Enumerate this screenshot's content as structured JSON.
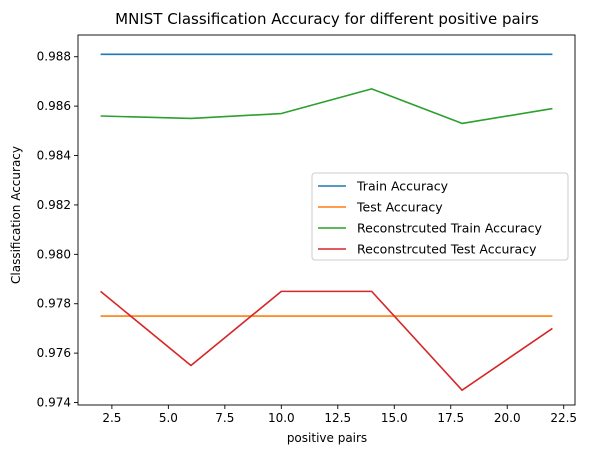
{
  "chart_data": {
    "type": "line",
    "title": "MNIST Classification Accuracy for different positive pairs",
    "xlabel": "positive pairs",
    "ylabel": "Classification Accuracy",
    "xlim": [
      1.0,
      23.0
    ],
    "ylim": [
      0.9739,
      0.98888
    ],
    "xticks": [
      2.5,
      5.0,
      7.5,
      10.0,
      12.5,
      15.0,
      17.5,
      20.0,
      22.5
    ],
    "xtick_labels": [
      "2.5",
      "5.0",
      "7.5",
      "10.0",
      "12.5",
      "15.0",
      "17.5",
      "20.0",
      "22.5"
    ],
    "yticks": [
      0.974,
      0.976,
      0.978,
      0.98,
      0.982,
      0.984,
      0.986,
      0.988
    ],
    "ytick_labels": [
      "0.974",
      "0.976",
      "0.978",
      "0.980",
      "0.982",
      "0.984",
      "0.986",
      "0.988"
    ],
    "x": [
      2,
      6,
      10,
      14,
      18,
      22
    ],
    "grid": false,
    "legend_position": "center-right",
    "series": [
      {
        "name": "Train Accuracy",
        "color": "#1f77b4",
        "values": [
          0.9881,
          0.9881,
          0.9881,
          0.9881,
          0.9881,
          0.9881
        ]
      },
      {
        "name": "Test Accuracy",
        "color": "#ff7f0e",
        "values": [
          0.9775,
          0.9775,
          0.9775,
          0.9775,
          0.9775,
          0.9775
        ]
      },
      {
        "name": "Reconstrcuted Train Accuracy",
        "color": "#2ca02c",
        "values": [
          0.9856,
          0.9855,
          0.9857,
          0.9867,
          0.9853,
          0.9859
        ]
      },
      {
        "name": "Reconstrcuted Test Accuracy",
        "color": "#d62728",
        "values": [
          0.9785,
          0.9755,
          0.9785,
          0.9785,
          0.9745,
          0.977
        ]
      }
    ]
  }
}
